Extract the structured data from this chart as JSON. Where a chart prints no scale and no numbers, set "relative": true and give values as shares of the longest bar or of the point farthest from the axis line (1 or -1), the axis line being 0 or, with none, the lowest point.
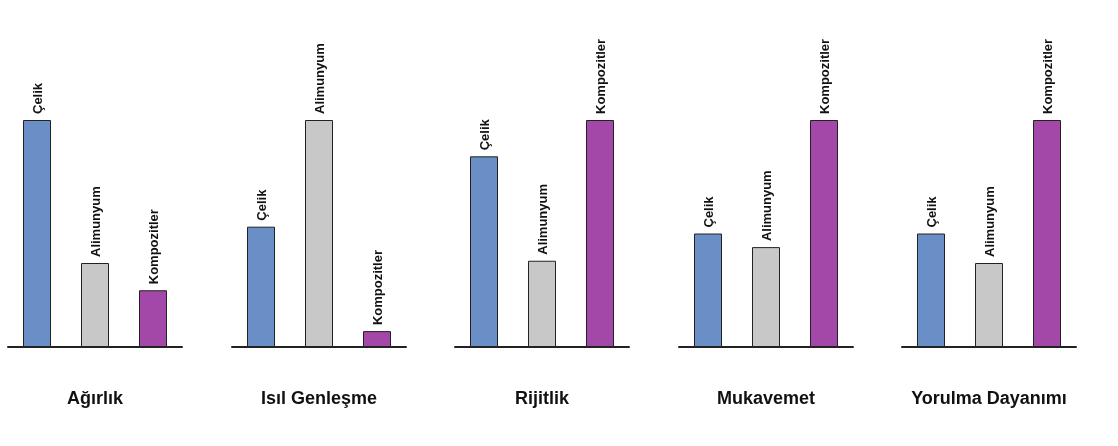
{
  "chart_data": [
    {
      "type": "bar",
      "relative": true,
      "stacked": true,
      "xlabel": "Ağırlık",
      "categories": [
        null,
        null,
        null
      ],
      "series": [
        {
          "name": "Çelik",
          "color": "#6a8fc7",
          "values": [
            1,
            null,
            null
          ]
        },
        {
          "name": "Alimunyum",
          "color": "#c8c8c8",
          "values": [
            null,
            0.37,
            null
          ]
        },
        {
          "name": "Kompozitler",
          "color": "#a347a8",
          "values": [
            null,
            null,
            0.25
          ]
        }
      ]
    },
    {
      "type": "bar",
      "relative": true,
      "stacked": true,
      "xlabel": "Isıl Genleşme",
      "categories": [
        null,
        null,
        null
      ],
      "series": [
        {
          "name": "Çelik",
          "color": "#6a8fc7",
          "values": [
            0.53,
            null,
            null
          ]
        },
        {
          "name": "Alimunyum",
          "color": "#c8c8c8",
          "values": [
            null,
            1,
            null
          ]
        },
        {
          "name": "Kompozitler",
          "color": "#a347a8",
          "values": [
            null,
            null,
            0.07
          ]
        }
      ]
    },
    {
      "type": "bar",
      "relative": true,
      "stacked": true,
      "xlabel": "Rijitlik",
      "categories": [
        null,
        null,
        null
      ],
      "series": [
        {
          "name": "Çelik",
          "color": "#6a8fc7",
          "values": [
            0.84,
            null,
            null
          ]
        },
        {
          "name": "Alimunyum",
          "color": "#c8c8c8",
          "values": [
            null,
            0.38,
            null
          ]
        },
        {
          "name": "Kompozitler",
          "color": "#a347a8",
          "values": [
            null,
            null,
            1
          ]
        }
      ]
    },
    {
      "type": "bar",
      "relative": true,
      "stacked": true,
      "xlabel": "Mukavemet",
      "categories": [
        null,
        null,
        null
      ],
      "series": [
        {
          "name": "Çelik",
          "color": "#6a8fc7",
          "values": [
            0.5,
            null,
            null
          ]
        },
        {
          "name": "Alimunyum",
          "color": "#c8c8c8",
          "values": [
            null,
            0.44,
            null
          ]
        },
        {
          "name": "Kompozitler",
          "color": "#a347a8",
          "values": [
            null,
            null,
            1
          ]
        }
      ]
    },
    {
      "type": "bar",
      "relative": true,
      "stacked": true,
      "xlabel": "Yorulma Dayanımı",
      "categories": [
        null,
        null,
        null
      ],
      "series": [
        {
          "name": "Çelik",
          "color": "#6a8fc7",
          "values": [
            0.5,
            null,
            null
          ]
        },
        {
          "name": "Alimunyum",
          "color": "#c8c8c8",
          "values": [
            null,
            0.37,
            null
          ]
        },
        {
          "name": "Kompozitler",
          "color": "#a347a8",
          "values": [
            null,
            null,
            1
          ]
        }
      ]
    }
  ]
}
